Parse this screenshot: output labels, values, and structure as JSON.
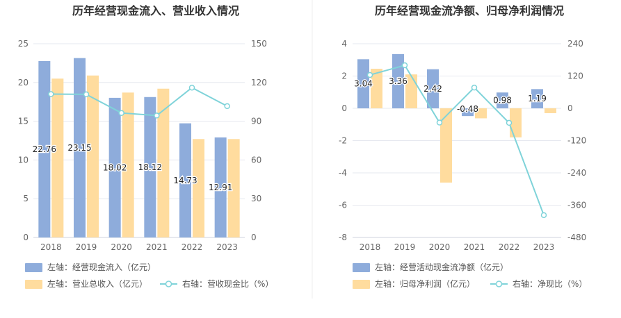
{
  "chart_data": [
    {
      "type": "bar",
      "title": "历年经营现金流入、营业收入情况",
      "categories": [
        "2018",
        "2019",
        "2020",
        "2021",
        "2022",
        "2023"
      ],
      "left_axis": {
        "ylim": [
          0,
          25
        ],
        "ticks": [
          "0",
          "5",
          "10",
          "15",
          "20",
          "25"
        ]
      },
      "right_axis": {
        "ylim": [
          0,
          150
        ],
        "ticks": [
          "0",
          "30",
          "60",
          "90",
          "120",
          "150"
        ]
      },
      "series": [
        {
          "name": "左轴：经营现金流入（亿元）",
          "type": "bar",
          "axis": "left",
          "color": "#8eacdb",
          "values": [
            22.76,
            23.15,
            18.02,
            18.12,
            14.73,
            12.91
          ],
          "labels": [
            "22.76",
            "23.15",
            "18.02",
            "18.12",
            "14.73",
            "12.91"
          ]
        },
        {
          "name": "左轴：营业总收入（亿元）",
          "type": "bar",
          "axis": "left",
          "color": "#ffdc9e",
          "values": [
            20.5,
            20.9,
            18.7,
            19.2,
            12.7,
            12.7
          ]
        },
        {
          "name": "右轴：营收现金比（%）",
          "type": "line",
          "axis": "right",
          "color": "#7fd3d9",
          "values": [
            111,
            110.8,
            96.4,
            94.4,
            116,
            101.7
          ]
        }
      ]
    },
    {
      "type": "bar",
      "title": "历年经营现金流净额、归母净利润情况",
      "categories": [
        "2018",
        "2019",
        "2020",
        "2021",
        "2022",
        "2023"
      ],
      "left_axis": {
        "ylim": [
          -8,
          4
        ],
        "ticks": [
          "-8",
          "-6",
          "-4",
          "-2",
          "0",
          "2",
          "4"
        ]
      },
      "right_axis": {
        "ylim": [
          -480,
          240
        ],
        "ticks": [
          "-480",
          "-360",
          "-240",
          "-120",
          "0",
          "120",
          "240"
        ]
      },
      "series": [
        {
          "name": "左轴：经营活动现金流净额（亿元）",
          "type": "bar",
          "axis": "left",
          "color": "#8eacdb",
          "values": [
            3.04,
            3.36,
            2.42,
            -0.48,
            0.98,
            1.19
          ],
          "labels": [
            "3.04",
            "3.36",
            "2.42",
            "-0.48",
            "0.98",
            "1.19"
          ]
        },
        {
          "name": "左轴：归母净利润（亿元）",
          "type": "bar",
          "axis": "left",
          "color": "#ffdc9e",
          "values": [
            2.45,
            2.1,
            -4.6,
            -0.62,
            -1.8,
            -0.3
          ]
        },
        {
          "name": "右轴：净现比（%）",
          "type": "line",
          "axis": "right",
          "color": "#7fd3d9",
          "values": [
            124,
            160,
            -53,
            77,
            -54,
            -397
          ]
        }
      ]
    }
  ]
}
